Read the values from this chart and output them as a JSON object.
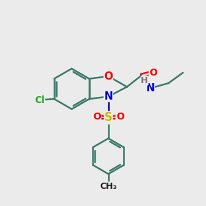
{
  "background_color": "#ebebeb",
  "bond_color": "#3d7a6a",
  "bond_width": 1.8,
  "atom_colors": {
    "O": "#ff0000",
    "N": "#0000cc",
    "S": "#ccbb00",
    "Cl": "#22aa22",
    "H": "#777777",
    "C": "#222222"
  },
  "font_size": 10,
  "figsize": [
    3.0,
    3.0
  ],
  "dpi": 100
}
